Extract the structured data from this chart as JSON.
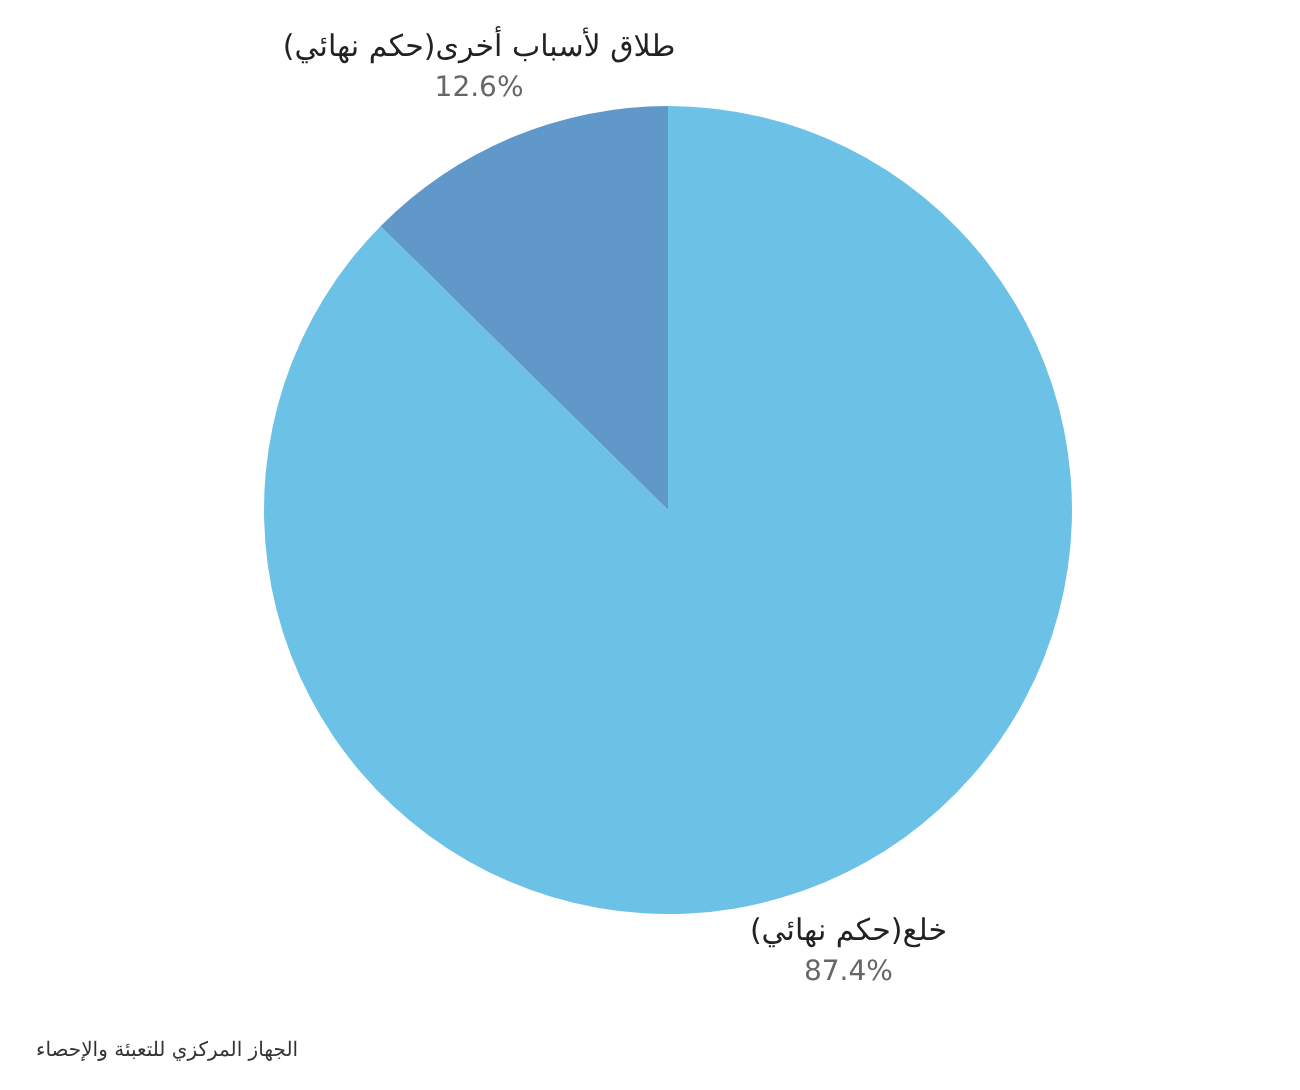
{
  "chart_data": {
    "type": "pie",
    "categories": [
      "خلع(حكم نهائي)",
      "طلاق لأسباب أخرى(حكم نهائي)"
    ],
    "values": [
      87.4,
      12.6
    ],
    "colors": [
      "#6cc1e6",
      "#5f98c9"
    ],
    "value_labels": [
      "87.4%",
      "12.6%"
    ],
    "legend": false,
    "annotations": [
      "الجهاز المركزي للتعبئة والإحصاء"
    ]
  }
}
